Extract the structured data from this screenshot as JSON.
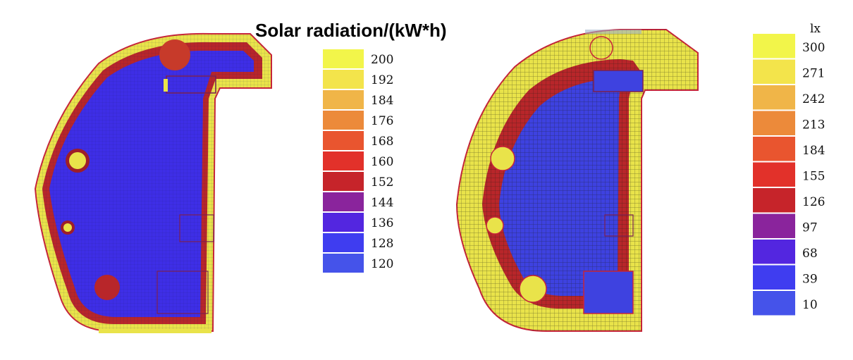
{
  "title": "Solar radiation/(kW*h)",
  "chart_data": [
    {
      "type": "heatmap",
      "title": "Solar radiation/(kW*h)",
      "legend_unit": "",
      "legend_ticks": [
        200,
        192,
        184,
        176,
        168,
        160,
        152,
        144,
        136,
        128,
        120
      ],
      "legend_colors": [
        "#f2f54a",
        "#f3e44b",
        "#f0b548",
        "#ec8a3a",
        "#e9552f",
        "#e2312a",
        "#c6242a",
        "#8a249c",
        "#5326e0",
        "#3f3df0",
        "#4553ea"
      ],
      "range": [
        120,
        200
      ],
      "legend_placement": "right"
    },
    {
      "type": "heatmap",
      "title": "",
      "legend_unit": "lx",
      "legend_ticks": [
        300,
        271,
        242,
        213,
        184,
        155,
        126,
        97,
        68,
        39,
        10
      ],
      "legend_colors": [
        "#f2f54a",
        "#f3e44b",
        "#f0b548",
        "#ec8a3a",
        "#e9552f",
        "#e2312a",
        "#c6242a",
        "#8a249c",
        "#5326e0",
        "#3f3df0",
        "#4553ea"
      ],
      "range": [
        10,
        300
      ],
      "legend_placement": "right"
    }
  ]
}
